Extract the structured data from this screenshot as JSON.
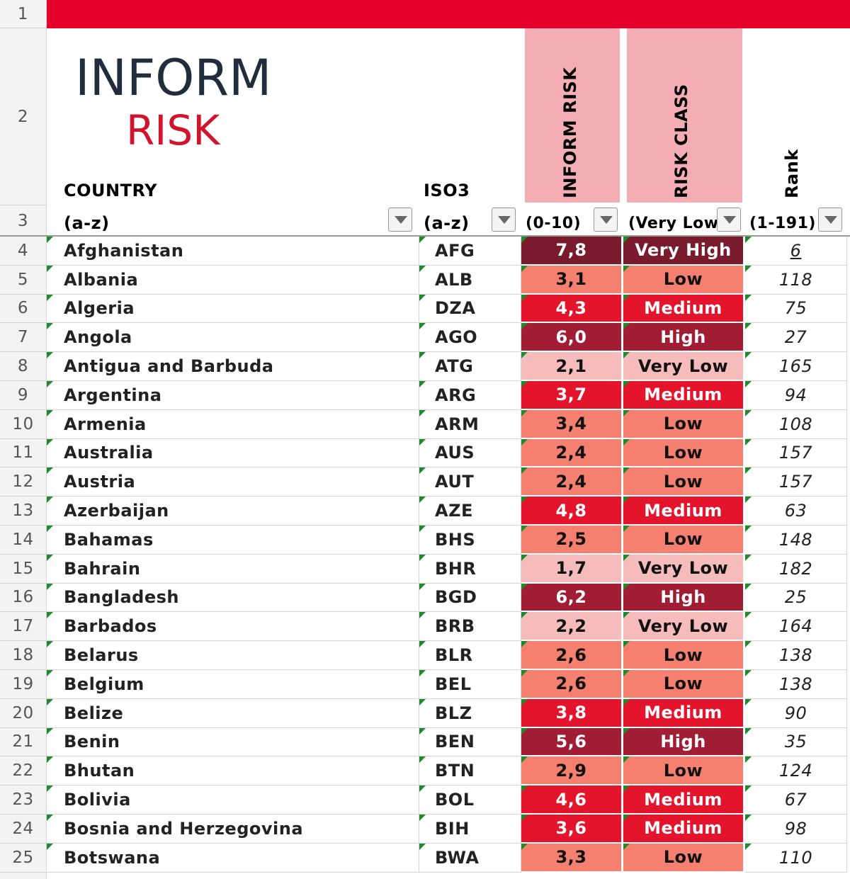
{
  "row_numbers": [
    1,
    2,
    3,
    4,
    5,
    6,
    7,
    8,
    9,
    10,
    11,
    12,
    13,
    14,
    15,
    16,
    17,
    18,
    19,
    20,
    21,
    22,
    23,
    24,
    25
  ],
  "logo": {
    "line1": "INFORM",
    "line2": "RISK"
  },
  "headers": {
    "country": {
      "title": "COUNTRY",
      "sub": "(a-z)"
    },
    "iso3": {
      "title": "ISO3",
      "sub": "(a-z)"
    },
    "risk": {
      "title": "INFORM RISK",
      "sub": "(0-10)"
    },
    "class": {
      "title": "RISK CLASS",
      "sub": "(Very Low-"
    },
    "rank": {
      "title": "Rank",
      "sub": "(1-191)"
    }
  },
  "class_colors": {
    "Very High": "#7a1b2d",
    "High": "#a01d33",
    "Medium": "#e5142d",
    "Low": "#f5806f",
    "Very Low": "#f6bcbc"
  },
  "rows": [
    {
      "country": "Afghanistan",
      "iso3": "AFG",
      "risk": "7,8",
      "class": "Very High",
      "rank": 6
    },
    {
      "country": "Albania",
      "iso3": "ALB",
      "risk": "3,1",
      "class": "Low",
      "rank": 118
    },
    {
      "country": "Algeria",
      "iso3": "DZA",
      "risk": "4,3",
      "class": "Medium",
      "rank": 75
    },
    {
      "country": "Angola",
      "iso3": "AGO",
      "risk": "6,0",
      "class": "High",
      "rank": 27
    },
    {
      "country": "Antigua and Barbuda",
      "iso3": "ATG",
      "risk": "2,1",
      "class": "Very Low",
      "rank": 165
    },
    {
      "country": "Argentina",
      "iso3": "ARG",
      "risk": "3,7",
      "class": "Medium",
      "rank": 94
    },
    {
      "country": "Armenia",
      "iso3": "ARM",
      "risk": "3,4",
      "class": "Low",
      "rank": 108
    },
    {
      "country": "Australia",
      "iso3": "AUS",
      "risk": "2,4",
      "class": "Low",
      "rank": 157
    },
    {
      "country": "Austria",
      "iso3": "AUT",
      "risk": "2,4",
      "class": "Low",
      "rank": 157
    },
    {
      "country": "Azerbaijan",
      "iso3": "AZE",
      "risk": "4,8",
      "class": "Medium",
      "rank": 63
    },
    {
      "country": "Bahamas",
      "iso3": "BHS",
      "risk": "2,5",
      "class": "Low",
      "rank": 148
    },
    {
      "country": "Bahrain",
      "iso3": "BHR",
      "risk": "1,7",
      "class": "Very Low",
      "rank": 182
    },
    {
      "country": "Bangladesh",
      "iso3": "BGD",
      "risk": "6,2",
      "class": "High",
      "rank": 25
    },
    {
      "country": "Barbados",
      "iso3": "BRB",
      "risk": "2,2",
      "class": "Very Low",
      "rank": 164
    },
    {
      "country": "Belarus",
      "iso3": "BLR",
      "risk": "2,6",
      "class": "Low",
      "rank": 138
    },
    {
      "country": "Belgium",
      "iso3": "BEL",
      "risk": "2,6",
      "class": "Low",
      "rank": 138
    },
    {
      "country": "Belize",
      "iso3": "BLZ",
      "risk": "3,8",
      "class": "Medium",
      "rank": 90
    },
    {
      "country": "Benin",
      "iso3": "BEN",
      "risk": "5,6",
      "class": "High",
      "rank": 35
    },
    {
      "country": "Bhutan",
      "iso3": "BTN",
      "risk": "2,9",
      "class": "Low",
      "rank": 124
    },
    {
      "country": "Bolivia",
      "iso3": "BOL",
      "risk": "4,6",
      "class": "Medium",
      "rank": 67
    },
    {
      "country": "Bosnia and Herzegovina",
      "iso3": "BIH",
      "risk": "3,6",
      "class": "Medium",
      "rank": 98
    },
    {
      "country": "Botswana",
      "iso3": "BWA",
      "risk": "3,3",
      "class": "Low",
      "rank": 110
    }
  ]
}
